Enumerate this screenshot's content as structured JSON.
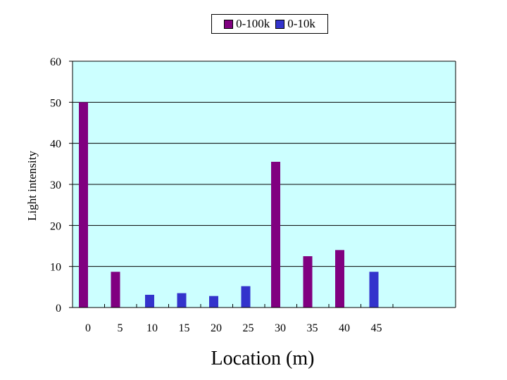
{
  "chart_data": {
    "type": "bar",
    "categories": [
      "0",
      "5",
      "10",
      "15",
      "20",
      "25",
      "30",
      "35",
      "40",
      "45"
    ],
    "series": [
      {
        "name": "0-100k",
        "color": "#800080",
        "values": [
          50,
          8.7,
          null,
          null,
          null,
          null,
          35.5,
          12.5,
          14,
          null
        ]
      },
      {
        "name": "0-10k",
        "color": "#3333cc",
        "values": [
          null,
          null,
          3.1,
          3.5,
          2.8,
          5.2,
          null,
          null,
          null,
          8.7
        ]
      }
    ],
    "ylabel": "Light intensity",
    "xlabel": "Location (m)",
    "ylim": [
      0,
      60
    ],
    "yticks": [
      0,
      10,
      20,
      30,
      40,
      50,
      60
    ],
    "grid": true,
    "plot_background": "#ccffff",
    "legend_position": "top"
  }
}
